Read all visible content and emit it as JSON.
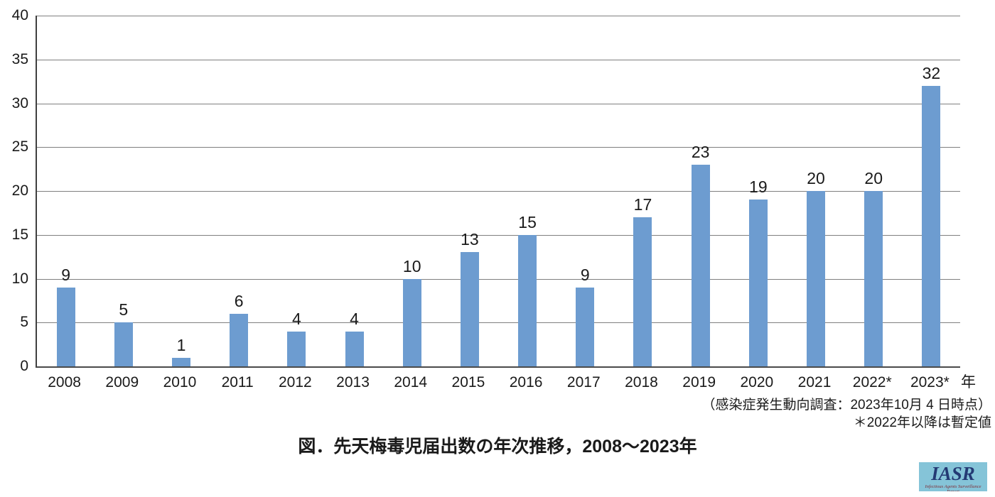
{
  "chart_data": {
    "type": "bar",
    "categories": [
      "2008",
      "2009",
      "2010",
      "2011",
      "2012",
      "2013",
      "2014",
      "2015",
      "2016",
      "2017",
      "2018",
      "2019",
      "2020",
      "2021",
      "2022*",
      "2023*"
    ],
    "values": [
      9,
      5,
      1,
      6,
      4,
      4,
      10,
      13,
      15,
      9,
      17,
      23,
      19,
      20,
      20,
      32
    ],
    "title": "図．先天梅毒児届出数の年次推移，2008～2023年",
    "xlabel": "年",
    "ylabel": "",
    "ylim": [
      0,
      40
    ],
    "yticks": [
      0,
      5,
      10,
      15,
      20,
      25,
      30,
      35,
      40
    ],
    "grid": true,
    "legend": false,
    "bar_color": "#6D9CD0",
    "gridline_color": "#7f7f7f",
    "annotations": [
      "（感染症発生動向調査：2023年10月 4 日時点）",
      "＊2022年以降は暫定値"
    ]
  },
  "logo": {
    "text": "IASR",
    "subtext": "Infectious Agents Surveillance Report",
    "bg_color": "#85C4D8",
    "text_color": "#243A74",
    "subtext_color": "#7E2B35"
  }
}
